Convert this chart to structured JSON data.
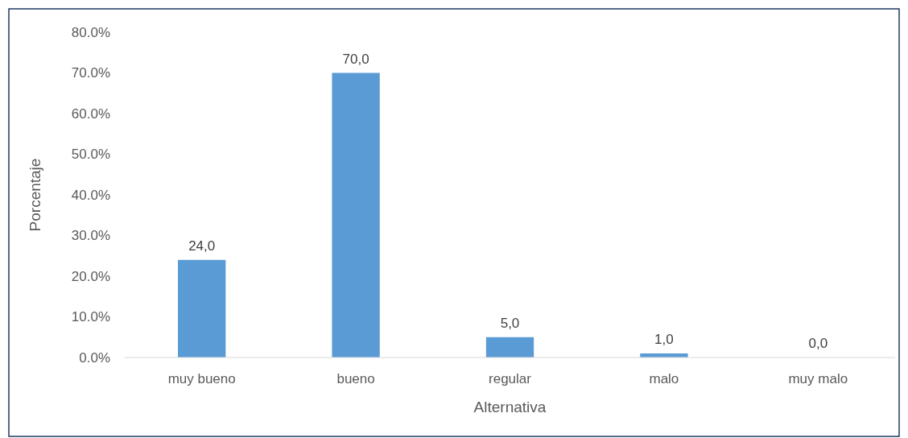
{
  "chart_data": {
    "type": "bar",
    "xlabel": "Alternativa",
    "ylabel": "Porcentaje",
    "categories": [
      "muy bueno",
      "bueno",
      "regular",
      "malo",
      "muy malo"
    ],
    "values": [
      24,
      70,
      5,
      1,
      0
    ],
    "value_labels": [
      "24,0",
      "70,0",
      "5,0",
      "1,0",
      "0,0"
    ],
    "color": "#5b9bd5",
    "ylim": [
      0,
      80
    ],
    "yticks": [
      {
        "value": 0,
        "label": "0.0%"
      },
      {
        "value": 10,
        "label": "10.0%"
      },
      {
        "value": 20,
        "label": "20.0%"
      },
      {
        "value": 30,
        "label": "30.0%"
      },
      {
        "value": 40,
        "label": "40.0%"
      },
      {
        "value": 50,
        "label": "50.0%"
      },
      {
        "value": 60,
        "label": "60.0%"
      },
      {
        "value": 70,
        "label": "70.0%"
      },
      {
        "value": 80,
        "label": "80.0%"
      }
    ],
    "grid": false
  }
}
